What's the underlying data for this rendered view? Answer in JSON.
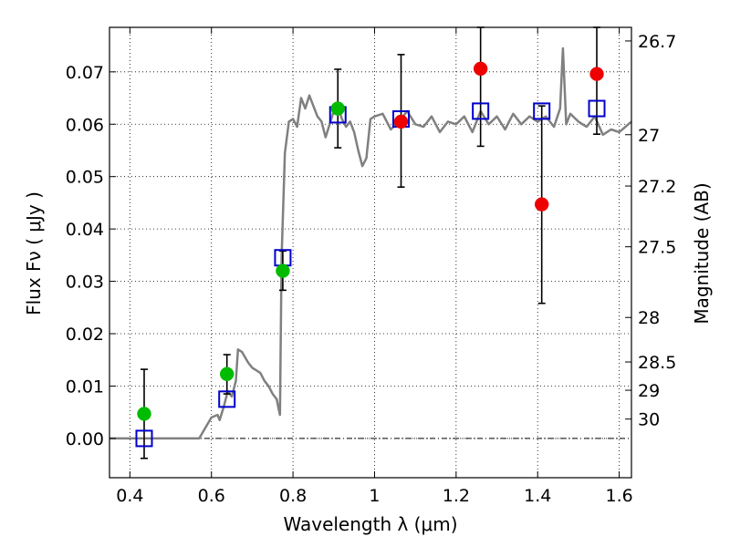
{
  "chart_data": {
    "type": "scatter",
    "xlabel": "Wavelength  λ (μm)",
    "ylabel": "Flux  Fν  ( μJy )",
    "y2label": "Magnitude (AB)",
    "xlim": [
      0.35,
      1.63
    ],
    "ylim": [
      -0.0075,
      0.0785
    ],
    "xticks": [
      0.4,
      0.6,
      0.8,
      1.0,
      1.2,
      1.4,
      1.6
    ],
    "xtick_labels": [
      "0.4",
      "0.6",
      "0.8",
      "1",
      "1.2",
      "1.4",
      "1.6"
    ],
    "yticks": [
      0.0,
      0.01,
      0.02,
      0.03,
      0.04,
      0.05,
      0.06,
      0.07
    ],
    "ytick_labels": [
      "0.00",
      "0.01",
      "0.02",
      "0.03",
      "0.04",
      "0.05",
      "0.06",
      "0.07"
    ],
    "y2ticks": [
      {
        "label": "26.7",
        "flux": 0.0759
      },
      {
        "label": "27",
        "flux": 0.058
      },
      {
        "label": "27.2",
        "flux": 0.0482
      },
      {
        "label": "27.5",
        "flux": 0.0366
      },
      {
        "label": "28",
        "flux": 0.0231
      },
      {
        "label": "28.5",
        "flux": 0.0146
      },
      {
        "label": "29",
        "flux": 0.0092
      },
      {
        "label": "30",
        "flux": 0.0037
      }
    ],
    "grid": true,
    "model_spectrum": {
      "x": [
        0.35,
        0.45,
        0.5,
        0.57,
        0.585,
        0.6,
        0.615,
        0.62,
        0.63,
        0.64,
        0.65,
        0.66,
        0.665,
        0.675,
        0.69,
        0.7,
        0.71,
        0.72,
        0.73,
        0.74,
        0.75,
        0.76,
        0.765,
        0.768,
        0.772,
        0.78,
        0.79,
        0.8,
        0.81,
        0.82,
        0.83,
        0.84,
        0.85,
        0.86,
        0.87,
        0.88,
        0.89,
        0.9,
        0.91,
        0.92,
        0.93,
        0.94,
        0.95,
        0.96,
        0.97,
        0.98,
        0.99,
        1.0,
        1.02,
        1.04,
        1.06,
        1.08,
        1.1,
        1.12,
        1.14,
        1.16,
        1.18,
        1.2,
        1.22,
        1.24,
        1.26,
        1.28,
        1.3,
        1.32,
        1.34,
        1.36,
        1.38,
        1.4,
        1.42,
        1.44,
        1.455,
        1.462,
        1.47,
        1.48,
        1.5,
        1.52,
        1.54,
        1.56,
        1.58,
        1.6,
        1.63
      ],
      "y": [
        0.0,
        0.0,
        0.0,
        0.0,
        0.002,
        0.004,
        0.0045,
        0.0035,
        0.006,
        0.009,
        0.008,
        0.011,
        0.017,
        0.0165,
        0.0145,
        0.0135,
        0.013,
        0.0125,
        0.011,
        0.01,
        0.0085,
        0.0075,
        0.0055,
        0.0045,
        0.0345,
        0.0545,
        0.0605,
        0.061,
        0.0595,
        0.065,
        0.063,
        0.0655,
        0.0635,
        0.0615,
        0.0605,
        0.0575,
        0.06,
        0.0625,
        0.0635,
        0.061,
        0.0595,
        0.0605,
        0.0585,
        0.055,
        0.052,
        0.0535,
        0.061,
        0.0615,
        0.062,
        0.059,
        0.0605,
        0.0625,
        0.06,
        0.0595,
        0.0615,
        0.0585,
        0.0605,
        0.06,
        0.0615,
        0.0585,
        0.0625,
        0.06,
        0.0615,
        0.059,
        0.062,
        0.06,
        0.0615,
        0.0605,
        0.0615,
        0.0595,
        0.063,
        0.0745,
        0.06,
        0.062,
        0.0605,
        0.0595,
        0.0615,
        0.058,
        0.059,
        0.0585,
        0.0605
      ]
    },
    "series": [
      {
        "name": "",
        "marker": "open-square",
        "color": "#0000cc",
        "points": [
          [
            0.435,
            0.0
          ],
          [
            0.638,
            0.0075
          ],
          [
            0.775,
            0.0345
          ],
          [
            0.91,
            0.0618
          ],
          [
            1.065,
            0.061
          ],
          [
            1.26,
            0.0625
          ],
          [
            1.41,
            0.0625
          ],
          [
            1.545,
            0.063
          ]
        ]
      },
      {
        "name": "",
        "marker": "filled-circle",
        "color": "#00bb00",
        "points": [
          [
            0.435,
            0.0047
          ],
          [
            0.638,
            0.0123
          ],
          [
            0.775,
            0.032
          ],
          [
            0.91,
            0.063
          ]
        ]
      },
      {
        "name": "",
        "marker": "filled-circle",
        "color": "#ee0000",
        "points": [
          [
            1.065,
            0.0605
          ],
          [
            1.26,
            0.0706
          ],
          [
            1.41,
            0.0447
          ],
          [
            1.545,
            0.0696
          ]
        ]
      }
    ],
    "errorbars": [
      {
        "x": 0.435,
        "low": -0.0038,
        "high": 0.0132
      },
      {
        "x": 0.638,
        "low": 0.0085,
        "high": 0.016
      },
      {
        "x": 0.775,
        "low": 0.0283,
        "high": 0.0358
      },
      {
        "x": 0.91,
        "low": 0.0555,
        "high": 0.0705
      },
      {
        "x": 1.065,
        "low": 0.048,
        "high": 0.0733
      },
      {
        "x": 1.26,
        "low": 0.0558,
        "high": 0.0785
      },
      {
        "x": 1.41,
        "low": 0.0258,
        "high": 0.0635
      },
      {
        "x": 1.545,
        "low": 0.0581,
        "high": 0.0785
      }
    ]
  }
}
